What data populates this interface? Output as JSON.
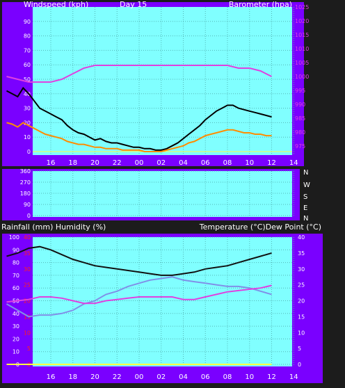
{
  "colors": {
    "page_bg": "#1c1c1c",
    "frame": "#7a00ff",
    "plot_bg": "#80ffff",
    "grid": "#55b8b8",
    "label_text": "#ffffff",
    "wind_gust": "#000000",
    "wind_avg": "#ff8c00",
    "barometer": "#e040e0",
    "temperature": "#111111",
    "dew_point": "#8090e8",
    "humidity": "#e040e0",
    "rainfall": "#ffa000",
    "red_axis": "#ff2020",
    "baseline": "#ffff40"
  },
  "chart_data": [
    {
      "type": "line",
      "panel": "wind",
      "header_left": "Windspeed (kph)",
      "header_center": "Day 15",
      "header_right": "Barometer (hpa)",
      "x_tick_labels": [
        "16",
        "18",
        "20",
        "22",
        "00",
        "02",
        "04",
        "06",
        "08",
        "10",
        "12",
        "14"
      ],
      "left_axis": {
        "range": [
          0,
          100
        ],
        "ticks": [
          0,
          10,
          20,
          30,
          40,
          50,
          60,
          70,
          80,
          90
        ]
      },
      "right_axis": {
        "range": [
          973,
          1025
        ],
        "ticks": [
          975,
          980,
          985,
          990,
          995,
          1000,
          1005,
          1010,
          1015,
          1020,
          1025
        ]
      },
      "series": [
        {
          "key": "gust",
          "axis": "left",
          "x": [
            0,
            1,
            2,
            3,
            4,
            5,
            6,
            7,
            8,
            9,
            10,
            11,
            12,
            13,
            14,
            15,
            16,
            17,
            18,
            19,
            20,
            21,
            22,
            23,
            24,
            25,
            26,
            27,
            28,
            29,
            30,
            31,
            32,
            33,
            34,
            35,
            36,
            37,
            38,
            39,
            40,
            41,
            42,
            43,
            44,
            45,
            46,
            47,
            48
          ],
          "values": [
            42,
            40,
            38,
            44,
            40,
            35,
            30,
            28,
            26,
            24,
            22,
            18,
            15,
            13,
            12,
            10,
            8,
            9,
            7,
            6,
            6,
            5,
            4,
            3,
            3,
            2,
            2,
            1,
            1,
            2,
            4,
            6,
            9,
            12,
            15,
            18,
            22,
            25,
            28,
            30,
            32,
            32,
            30,
            29,
            28,
            27,
            26,
            25,
            24
          ]
        },
        {
          "key": "average",
          "axis": "left",
          "x": [
            0,
            1,
            2,
            3,
            4,
            5,
            6,
            7,
            8,
            9,
            10,
            11,
            12,
            13,
            14,
            15,
            16,
            17,
            18,
            19,
            20,
            21,
            22,
            23,
            24,
            25,
            26,
            27,
            28,
            29,
            30,
            31,
            32,
            33,
            34,
            35,
            36,
            37,
            38,
            39,
            40,
            41,
            42,
            43,
            44,
            45,
            46,
            47,
            48
          ],
          "values": [
            20,
            19,
            17,
            20,
            18,
            16,
            14,
            12,
            11,
            10,
            9,
            7,
            6,
            5,
            5,
            4,
            3,
            3,
            2,
            2,
            2,
            1,
            1,
            1,
            1,
            0,
            0,
            0,
            0,
            1,
            2,
            3,
            4,
            6,
            7,
            9,
            11,
            12,
            13,
            14,
            15,
            15,
            14,
            13,
            13,
            12,
            12,
            11,
            11
          ]
        },
        {
          "key": "barometer",
          "axis": "right",
          "x": [
            0,
            2,
            4,
            6,
            8,
            10,
            12,
            14,
            16,
            18,
            20,
            22,
            24,
            26,
            28,
            30,
            32,
            34,
            36,
            38,
            40,
            42,
            44,
            46,
            48
          ],
          "values": [
            1000,
            999,
            998,
            998,
            998,
            999,
            1001,
            1003,
            1004,
            1004,
            1004,
            1004,
            1004,
            1004,
            1004,
            1004,
            1004,
            1004,
            1004,
            1004,
            1004,
            1003,
            1003,
            1002,
            1000
          ]
        }
      ]
    },
    {
      "type": "line",
      "panel": "wind_direction",
      "left_axis": {
        "range": [
          0,
          360
        ],
        "ticks": [
          0,
          90,
          180,
          270,
          360
        ]
      },
      "right_labels": [
        "N",
        "W",
        "S",
        "E",
        "N"
      ],
      "series": []
    },
    {
      "type": "line",
      "panel": "temperature",
      "header_left": "Rainfall (mm)  Humidity (%)",
      "header_right": "Temperature (°C)Dew Point (°C)",
      "x_tick_labels": [
        "16",
        "18",
        "20",
        "22",
        "00",
        "02",
        "04",
        "06",
        "08",
        "10",
        "12",
        "14"
      ],
      "left_axis": {
        "range": [
          0,
          100
        ],
        "ticks": [
          0,
          10,
          20,
          30,
          40,
          50,
          60,
          70,
          80,
          90,
          100
        ]
      },
      "left_red_axis": {
        "range": [
          0,
          40
        ],
        "ticks": [
          0,
          5,
          10,
          15,
          20,
          25,
          30,
          35,
          40
        ]
      },
      "right_axis": {
        "range": [
          0,
          40
        ],
        "ticks": [
          0,
          5,
          10,
          15,
          20,
          25,
          30,
          35,
          40
        ]
      },
      "series": [
        {
          "key": "temperature",
          "axis": "right",
          "x": [
            0,
            2,
            4,
            6,
            8,
            10,
            12,
            14,
            16,
            18,
            20,
            22,
            24,
            26,
            28,
            30,
            32,
            34,
            36,
            38,
            40,
            42,
            44,
            46,
            48
          ],
          "values": [
            34,
            35,
            36.5,
            37,
            36,
            34.5,
            33,
            32,
            31,
            30.5,
            30,
            29.5,
            29,
            28.5,
            28,
            28,
            28.5,
            29,
            30,
            30.5,
            31,
            32,
            33,
            34,
            35
          ]
        },
        {
          "key": "dew_point",
          "axis": "right",
          "x": [
            0,
            2,
            4,
            6,
            8,
            10,
            12,
            14,
            16,
            18,
            20,
            22,
            24,
            26,
            28,
            30,
            32,
            34,
            36,
            38,
            40,
            42,
            44,
            46,
            48
          ],
          "values": [
            19,
            17,
            15,
            15.5,
            15.5,
            16,
            17,
            19,
            20,
            22,
            23,
            24.5,
            25.5,
            26.5,
            27,
            27.5,
            26.5,
            26,
            25.5,
            25,
            24.5,
            24.5,
            24,
            23,
            22
          ]
        },
        {
          "key": "humidity",
          "axis": "left",
          "x": [
            0,
            2,
            4,
            6,
            8,
            10,
            12,
            14,
            16,
            18,
            20,
            22,
            24,
            26,
            28,
            30,
            32,
            34,
            36,
            38,
            40,
            42,
            44,
            46,
            48
          ],
          "values": [
            49,
            50,
            51,
            53,
            53,
            52,
            50,
            48,
            48,
            50,
            51,
            52,
            53,
            53,
            53,
            53,
            51,
            51,
            53,
            55,
            57,
            58,
            59,
            60,
            62
          ]
        },
        {
          "key": "rainfall",
          "axis": "left",
          "x": [
            0,
            48
          ],
          "values": [
            0,
            0
          ]
        }
      ]
    }
  ]
}
